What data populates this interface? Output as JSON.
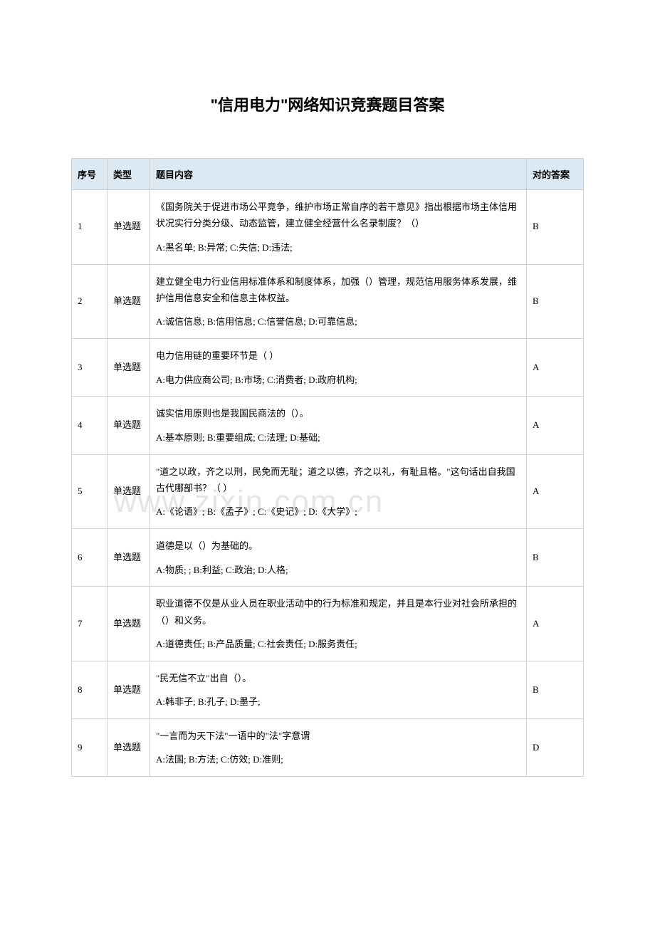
{
  "title": "\"信用电力\"网络知识竞赛题目答案",
  "watermark": "www.zixin.com.cn",
  "columns": {
    "index": "序号",
    "type": "类型",
    "content": "题目内容",
    "answer": "对的答案"
  },
  "rows": [
    {
      "index": "1",
      "type": "单选题",
      "question": "《国务院关于促进市场公平竞争，维护市场正常自序的若干意见》指出根据市场主体信用状况实行分类分级、动态监管，建立健全经营什么名录制度？（）",
      "options": "A:黑名单; B:异常; C:失信; D:违法;",
      "answer": "B"
    },
    {
      "index": "2",
      "type": "单选题",
      "question": "建立健全电力行业信用标准体系和制度体系，加强（）管理，规范信用服务体系发展，维护信用信息安全和信息主体权益。",
      "options": "A:诚信信息; B:信用信息; C:信誉信息; D:可靠信息;",
      "answer": "B"
    },
    {
      "index": "3",
      "type": "单选题",
      "question": "电力信用链的重要环节是（  ）",
      "options": "A:电力供应商公司; B:市场; C:消费者; D:政府机构;",
      "answer": "A"
    },
    {
      "index": "4",
      "type": "单选题",
      "question": "诚实信用原则也是我国民商法的（）。",
      "options": "A:基本原则; B:重要组成; C:法理; D:基础;",
      "answer": "A"
    },
    {
      "index": "5",
      "type": "单选题",
      "question": "\"道之以政，齐之以刑，民免而无耻；道之以德，齐之以礼，有耻且格。\"这句话出自我国古代哪部书？（  ）",
      "options": "A:《论语》; B:《孟子》; C:《史记》; D:《大学》;",
      "answer": "A"
    },
    {
      "index": "6",
      "type": "单选题",
      "question": "道德是以（）为基础的。",
      "options": "A:物质; ; B:利益; C:政治; D:人格;",
      "answer": "B"
    },
    {
      "index": "7",
      "type": "单选题",
      "question": "职业道德不仅是从业人员在职业活动中的行为标准和规定，并且是本行业对社会所承担的（）和义务。",
      "options": "A:道德责任; B:产品质量; C:社会责任; D:服务责任;",
      "answer": "A"
    },
    {
      "index": "8",
      "type": "单选题",
      "question": "\"民无信不立\"出自（）。",
      "options": "A:韩非子; B:孔子; D:墨子;",
      "answer": "B"
    },
    {
      "index": "9",
      "type": "单选题",
      "question": "\"一言而为天下法\"一语中的\"法\"字意谓",
      "options": "A:法国; B:方法; C:仿效; D:准则;",
      "answer": "D"
    }
  ],
  "styles": {
    "header_bg": "#dce8f2",
    "border_color": "#d0d0d0",
    "watermark_color": "#e5e5e5",
    "font_size_title": 22,
    "font_size_body": 13
  }
}
